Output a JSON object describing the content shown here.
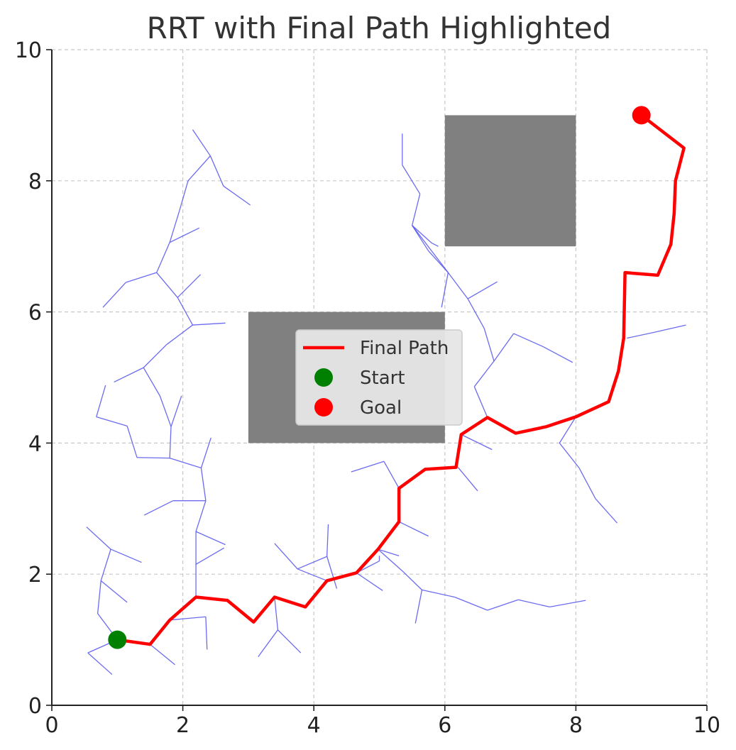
{
  "chart_data": {
    "type": "line",
    "title": "RRT with Final Path Highlighted",
    "xlabel": "",
    "ylabel": "",
    "xlim": [
      0,
      10
    ],
    "ylim": [
      0,
      10
    ],
    "xticks": [
      "0",
      "2",
      "4",
      "6",
      "8",
      "10"
    ],
    "yticks": [
      "0",
      "2",
      "4",
      "6",
      "8",
      "10"
    ],
    "grid": true,
    "legend_position": "center",
    "colors": {
      "tree": "#5b5bf0",
      "path": "#ff0000",
      "start": "#008000",
      "goal": "#ff0000",
      "obstacle": "#808080"
    },
    "obstacles": [
      {
        "x": 6,
        "y": 7,
        "width": 2,
        "height": 2
      },
      {
        "x": 3,
        "y": 4,
        "width": 3,
        "height": 2
      }
    ],
    "tree_edges": [
      [
        [
          1.0,
          1.0
        ],
        [
          0.55,
          0.8
        ]
      ],
      [
        [
          1.0,
          1.0
        ],
        [
          0.7,
          1.4
        ]
      ],
      [
        [
          0.55,
          0.8
        ],
        [
          0.92,
          0.47
        ]
      ],
      [
        [
          0.7,
          1.4
        ],
        [
          0.75,
          1.9
        ]
      ],
      [
        [
          0.75,
          1.9
        ],
        [
          1.15,
          1.57
        ]
      ],
      [
        [
          0.75,
          1.9
        ],
        [
          0.9,
          2.38
        ]
      ],
      [
        [
          0.9,
          2.38
        ],
        [
          0.53,
          2.72
        ]
      ],
      [
        [
          0.9,
          2.38
        ],
        [
          1.37,
          2.18
        ]
      ],
      [
        [
          1.5,
          0.93
        ],
        [
          1.88,
          0.62
        ]
      ],
      [
        [
          1.8,
          1.3
        ],
        [
          2.35,
          1.35
        ]
      ],
      [
        [
          2.35,
          1.35
        ],
        [
          2.37,
          0.85
        ]
      ],
      [
        [
          2.2,
          1.65
        ],
        [
          2.2,
          2.65
        ]
      ],
      [
        [
          2.2,
          2.65
        ],
        [
          2.65,
          2.45
        ]
      ],
      [
        [
          2.2,
          2.15
        ],
        [
          2.63,
          2.4
        ]
      ],
      [
        [
          2.2,
          2.65
        ],
        [
          2.35,
          3.12
        ]
      ],
      [
        [
          2.35,
          3.12
        ],
        [
          1.85,
          3.12
        ]
      ],
      [
        [
          1.85,
          3.12
        ],
        [
          1.41,
          2.9
        ]
      ],
      [
        [
          2.35,
          3.12
        ],
        [
          2.28,
          3.62
        ]
      ],
      [
        [
          2.28,
          3.62
        ],
        [
          2.43,
          4.08
        ]
      ],
      [
        [
          2.28,
          3.62
        ],
        [
          1.8,
          3.77
        ]
      ],
      [
        [
          1.8,
          3.77
        ],
        [
          1.82,
          4.25
        ]
      ],
      [
        [
          1.82,
          4.25
        ],
        [
          1.98,
          4.72
        ]
      ],
      [
        [
          1.8,
          3.77
        ],
        [
          1.3,
          3.78
        ]
      ],
      [
        [
          1.3,
          3.78
        ],
        [
          1.15,
          4.26
        ]
      ],
      [
        [
          1.15,
          4.26
        ],
        [
          0.68,
          4.4
        ]
      ],
      [
        [
          0.68,
          4.4
        ],
        [
          0.82,
          4.88
        ]
      ],
      [
        [
          1.82,
          4.25
        ],
        [
          1.65,
          4.72
        ]
      ],
      [
        [
          1.65,
          4.72
        ],
        [
          1.4,
          5.15
        ]
      ],
      [
        [
          1.4,
          5.15
        ],
        [
          0.95,
          4.93
        ]
      ],
      [
        [
          1.4,
          5.15
        ],
        [
          1.75,
          5.5
        ]
      ],
      [
        [
          1.75,
          5.5
        ],
        [
          2.15,
          5.8
        ]
      ],
      [
        [
          2.15,
          5.8
        ],
        [
          2.65,
          5.83
        ]
      ],
      [
        [
          2.15,
          5.8
        ],
        [
          1.92,
          6.22
        ]
      ],
      [
        [
          1.92,
          6.22
        ],
        [
          2.27,
          6.57
        ]
      ],
      [
        [
          1.92,
          6.22
        ],
        [
          1.6,
          6.6
        ]
      ],
      [
        [
          1.6,
          6.6
        ],
        [
          1.13,
          6.45
        ]
      ],
      [
        [
          1.13,
          6.45
        ],
        [
          0.78,
          6.07
        ]
      ],
      [
        [
          1.6,
          6.6
        ],
        [
          1.8,
          7.06
        ]
      ],
      [
        [
          1.8,
          7.06
        ],
        [
          2.25,
          7.28
        ]
      ],
      [
        [
          1.8,
          7.06
        ],
        [
          1.95,
          7.55
        ]
      ],
      [
        [
          1.95,
          7.55
        ],
        [
          2.08,
          8.0
        ]
      ],
      [
        [
          2.08,
          8.0
        ],
        [
          2.42,
          8.38
        ]
      ],
      [
        [
          2.42,
          8.38
        ],
        [
          2.15,
          8.78
        ]
      ],
      [
        [
          2.42,
          8.38
        ],
        [
          2.62,
          7.92
        ]
      ],
      [
        [
          2.62,
          7.92
        ],
        [
          3.03,
          7.63
        ]
      ],
      [
        [
          3.4,
          1.65
        ],
        [
          3.45,
          1.15
        ]
      ],
      [
        [
          3.45,
          1.15
        ],
        [
          3.15,
          0.74
        ]
      ],
      [
        [
          3.45,
          1.15
        ],
        [
          3.8,
          0.8
        ]
      ],
      [
        [
          4.2,
          1.9
        ],
        [
          3.75,
          2.08
        ]
      ],
      [
        [
          3.75,
          2.08
        ],
        [
          3.4,
          2.47
        ]
      ],
      [
        [
          3.75,
          2.08
        ],
        [
          4.2,
          2.27
        ]
      ],
      [
        [
          4.2,
          2.27
        ],
        [
          4.35,
          1.78
        ]
      ],
      [
        [
          4.2,
          2.27
        ],
        [
          4.22,
          2.76
        ]
      ],
      [
        [
          4.65,
          2.02
        ],
        [
          5.05,
          1.75
        ]
      ],
      [
        [
          4.65,
          2.02
        ],
        [
          5.0,
          2.2
        ]
      ],
      [
        [
          5.0,
          2.2
        ],
        [
          5.0,
          2.28
        ]
      ],
      [
        [
          4.98,
          2.38
        ],
        [
          5.35,
          2.05
        ]
      ],
      [
        [
          5.35,
          2.05
        ],
        [
          5.65,
          1.76
        ]
      ],
      [
        [
          5.65,
          1.76
        ],
        [
          5.55,
          1.25
        ]
      ],
      [
        [
          5.65,
          1.76
        ],
        [
          6.15,
          1.65
        ]
      ],
      [
        [
          6.15,
          1.65
        ],
        [
          6.65,
          1.45
        ]
      ],
      [
        [
          6.65,
          1.45
        ],
        [
          7.12,
          1.61
        ]
      ],
      [
        [
          7.12,
          1.61
        ],
        [
          7.6,
          1.5
        ]
      ],
      [
        [
          7.6,
          1.5
        ],
        [
          8.15,
          1.6
        ]
      ],
      [
        [
          4.98,
          2.38
        ],
        [
          5.3,
          2.28
        ]
      ],
      [
        [
          5.3,
          2.8
        ],
        [
          5.75,
          2.58
        ]
      ],
      [
        [
          5.3,
          3.31
        ],
        [
          5.07,
          3.72
        ]
      ],
      [
        [
          5.07,
          3.72
        ],
        [
          4.57,
          3.56
        ]
      ],
      [
        [
          6.2,
          3.63
        ],
        [
          6.5,
          3.27
        ]
      ],
      [
        [
          6.25,
          4.13
        ],
        [
          6.72,
          3.9
        ]
      ],
      [
        [
          6.65,
          4.39
        ],
        [
          6.45,
          4.86
        ]
      ],
      [
        [
          6.45,
          4.86
        ],
        [
          6.75,
          5.25
        ]
      ],
      [
        [
          6.75,
          5.25
        ],
        [
          7.05,
          5.67
        ]
      ],
      [
        [
          7.05,
          5.67
        ],
        [
          7.5,
          5.47
        ]
      ],
      [
        [
          7.5,
          5.47
        ],
        [
          7.95,
          5.23
        ]
      ],
      [
        [
          6.75,
          5.25
        ],
        [
          6.6,
          5.75
        ]
      ],
      [
        [
          6.6,
          5.75
        ],
        [
          6.35,
          6.2
        ]
      ],
      [
        [
          6.35,
          6.2
        ],
        [
          6.8,
          6.46
        ]
      ],
      [
        [
          6.35,
          6.2
        ],
        [
          6.05,
          6.6
        ]
      ],
      [
        [
          6.05,
          6.6
        ],
        [
          5.5,
          7.32
        ]
      ],
      [
        [
          6.05,
          6.6
        ],
        [
          5.95,
          6.07
        ]
      ],
      [
        [
          5.5,
          7.32
        ],
        [
          5.8,
          7.05
        ]
      ],
      [
        [
          5.8,
          7.05
        ],
        [
          5.9,
          7.0
        ]
      ],
      [
        [
          5.5,
          7.32
        ],
        [
          5.62,
          7.8
        ]
      ],
      [
        [
          5.62,
          7.8
        ],
        [
          5.35,
          8.24
        ]
      ],
      [
        [
          5.35,
          8.24
        ],
        [
          5.35,
          8.72
        ]
      ],
      [
        [
          5.5,
          7.32
        ],
        [
          5.75,
          6.93
        ]
      ],
      [
        [
          5.75,
          6.93
        ],
        [
          6.05,
          6.6
        ]
      ],
      [
        [
          8.0,
          4.4
        ],
        [
          7.75,
          4.0
        ]
      ],
      [
        [
          7.75,
          4.0
        ],
        [
          8.05,
          3.62
        ]
      ],
      [
        [
          8.05,
          3.62
        ],
        [
          8.3,
          3.15
        ]
      ],
      [
        [
          8.3,
          3.15
        ],
        [
          8.63,
          2.78
        ]
      ],
      [
        [
          8.78,
          5.6
        ],
        [
          9.2,
          5.69
        ]
      ],
      [
        [
          9.2,
          5.69
        ],
        [
          9.68,
          5.8
        ]
      ]
    ],
    "series": [
      {
        "name": "Final Path",
        "points": [
          [
            1.0,
            1.0
          ],
          [
            1.5,
            0.93
          ],
          [
            1.8,
            1.3
          ],
          [
            2.2,
            1.65
          ],
          [
            2.68,
            1.6
          ],
          [
            3.08,
            1.27
          ],
          [
            3.4,
            1.65
          ],
          [
            3.87,
            1.5
          ],
          [
            4.2,
            1.9
          ],
          [
            4.65,
            2.02
          ],
          [
            4.98,
            2.38
          ],
          [
            5.3,
            2.8
          ],
          [
            5.3,
            3.31
          ],
          [
            5.7,
            3.6
          ],
          [
            6.17,
            3.63
          ],
          [
            6.25,
            4.13
          ],
          [
            6.65,
            4.39
          ],
          [
            7.08,
            4.15
          ],
          [
            7.55,
            4.25
          ],
          [
            8.0,
            4.4
          ],
          [
            8.5,
            4.63
          ],
          [
            8.65,
            5.1
          ],
          [
            8.73,
            5.6
          ],
          [
            8.75,
            6.6
          ],
          [
            9.25,
            6.56
          ],
          [
            9.45,
            7.03
          ],
          [
            9.5,
            7.5
          ],
          [
            9.52,
            8.0
          ],
          [
            9.65,
            8.5
          ],
          [
            9.0,
            9.0
          ]
        ]
      },
      {
        "name": "Start",
        "points": [
          [
            1.0,
            1.0
          ]
        ]
      },
      {
        "name": "Goal",
        "points": [
          [
            9.0,
            9.0
          ]
        ]
      }
    ],
    "legend": [
      "Final Path",
      "Start",
      "Goal"
    ]
  }
}
